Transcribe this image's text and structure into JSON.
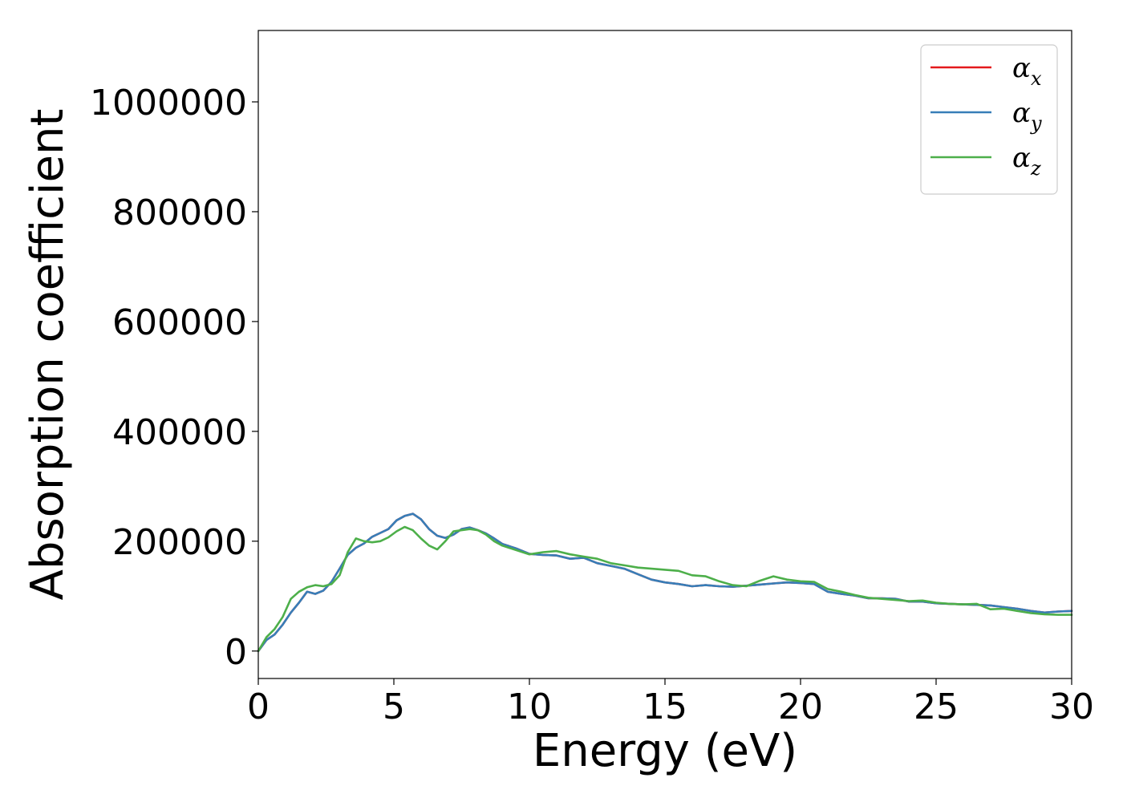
{
  "chart_data": {
    "type": "line",
    "xlabel": "Energy (eV)",
    "ylabel": "Absorption coefficient",
    "xlim": [
      0,
      30
    ],
    "ylim": [
      -50000,
      1130000
    ],
    "xticks": [
      "0",
      "5",
      "10",
      "15",
      "20",
      "25",
      "30"
    ],
    "yticks": [
      "0",
      "200000",
      "400000",
      "600000",
      "800000",
      "1000000"
    ],
    "grid": false,
    "legend_position": "top-right",
    "x": [
      0,
      0.3,
      0.6,
      0.9,
      1.2,
      1.5,
      1.8,
      2.1,
      2.4,
      2.7,
      3.0,
      3.3,
      3.6,
      3.9,
      4.2,
      4.5,
      4.8,
      5.1,
      5.4,
      5.7,
      6.0,
      6.3,
      6.6,
      6.9,
      7.2,
      7.5,
      7.8,
      8.1,
      8.4,
      8.7,
      9.0,
      9.5,
      10.0,
      10.5,
      11.0,
      11.5,
      12.0,
      12.5,
      13.0,
      13.5,
      14.0,
      14.5,
      15.0,
      15.5,
      16.0,
      16.5,
      17.0,
      17.5,
      18.0,
      18.5,
      19.0,
      19.5,
      20.0,
      20.5,
      21.0,
      21.5,
      22.0,
      22.5,
      23.0,
      23.5,
      24.0,
      24.5,
      25.0,
      25.5,
      26.0,
      26.5,
      27.0,
      27.5,
      28.0,
      28.5,
      29.0,
      29.5,
      30.0
    ],
    "series": [
      {
        "name": "α",
        "subscript": "x",
        "color": "#e41a1c",
        "values": [
          0,
          20000,
          30000,
          48000,
          70000,
          88000,
          108000,
          104000,
          110000,
          126000,
          150000,
          175000,
          188000,
          196000,
          208000,
          215000,
          222000,
          238000,
          246000,
          250000,
          240000,
          222000,
          210000,
          206000,
          212000,
          222000,
          225000,
          220000,
          214000,
          205000,
          195000,
          187000,
          177000,
          175000,
          174000,
          168000,
          170000,
          160000,
          155000,
          150000,
          140000,
          130000,
          125000,
          122000,
          118000,
          120000,
          118000,
          117000,
          119000,
          121000,
          123000,
          125000,
          124000,
          122000,
          108000,
          104000,
          101000,
          96000,
          96000,
          95000,
          90000,
          90000,
          87000,
          86000,
          85000,
          84000,
          83000,
          80000,
          77000,
          73000,
          70000,
          72000,
          73000
        ]
      },
      {
        "name": "α",
        "subscript": "y",
        "color": "#377eb8",
        "values": [
          0,
          20000,
          30000,
          48000,
          70000,
          88000,
          108000,
          104000,
          110000,
          126000,
          150000,
          175000,
          188000,
          196000,
          208000,
          215000,
          222000,
          238000,
          246000,
          250000,
          240000,
          222000,
          210000,
          206000,
          212000,
          222000,
          225000,
          220000,
          214000,
          205000,
          195000,
          187000,
          177000,
          175000,
          174000,
          168000,
          170000,
          160000,
          155000,
          150000,
          140000,
          130000,
          125000,
          122000,
          118000,
          120000,
          118000,
          117000,
          119000,
          121000,
          123000,
          125000,
          124000,
          122000,
          108000,
          104000,
          101000,
          96000,
          96000,
          95000,
          90000,
          90000,
          87000,
          86000,
          85000,
          84000,
          83000,
          80000,
          77000,
          73000,
          70000,
          72000,
          73000
        ]
      },
      {
        "name": "α",
        "subscript": "z",
        "color": "#4daf4a",
        "values": [
          0,
          25000,
          40000,
          62000,
          95000,
          108000,
          116000,
          120000,
          118000,
          122000,
          138000,
          180000,
          205000,
          200000,
          198000,
          200000,
          207000,
          218000,
          226000,
          220000,
          205000,
          192000,
          185000,
          200000,
          218000,
          220000,
          222000,
          220000,
          212000,
          200000,
          192000,
          184000,
          176000,
          180000,
          182000,
          176000,
          172000,
          168000,
          160000,
          156000,
          152000,
          150000,
          148000,
          146000,
          138000,
          136000,
          127000,
          120000,
          118000,
          128000,
          136000,
          130000,
          127000,
          126000,
          113000,
          108000,
          102000,
          97000,
          95000,
          93000,
          91000,
          92000,
          88000,
          86000,
          85000,
          86000,
          76000,
          77000,
          73000,
          69000,
          67000,
          66000,
          66000
        ]
      }
    ]
  }
}
